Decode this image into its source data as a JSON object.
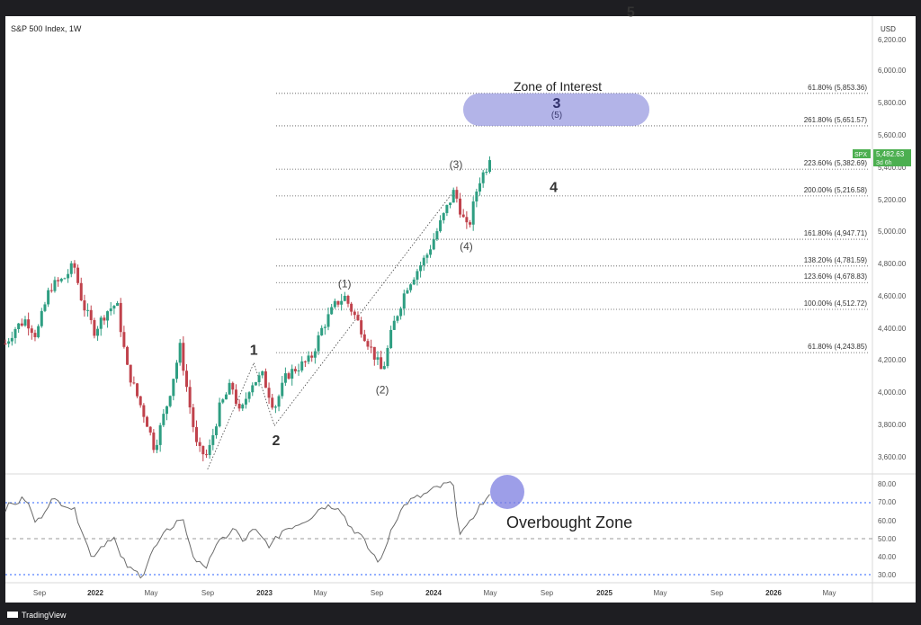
{
  "header": {
    "title": "S&P 500 Index, 1W",
    "currency": "USD"
  },
  "footer": {
    "brand": "TradingView"
  },
  "colors": {
    "up": "#2e9e82",
    "down": "#c0424c",
    "zone": "#9a9be0",
    "price_tag": "#4caf50",
    "rsi_line": "#6b6b6b",
    "bg": "#ffffff",
    "frame": "#1e1e22"
  },
  "price_axis": {
    "ticks": [
      "6,200.00",
      "6,000.00",
      "5,800.00",
      "5,600.00",
      "5,400.00",
      "5,200.00",
      "5,000.00",
      "4,800.00",
      "4,600.00",
      "4,400.00",
      "4,200.00",
      "4,000.00",
      "3,800.00",
      "3,600.00"
    ],
    "tag_symbol": "SPX",
    "tag_price": "5,482.63",
    "tag_time": "3d 6h"
  },
  "rsi_axis": {
    "ticks": [
      "80.00",
      "70.00",
      "60.00",
      "50.00",
      "40.00",
      "30.00"
    ]
  },
  "time_axis": {
    "ticks": [
      "Sep",
      "2022",
      "May",
      "Sep",
      "2023",
      "May",
      "Sep",
      "2024",
      "May",
      "Sep",
      "2025",
      "May",
      "Sep",
      "2026",
      "May"
    ]
  },
  "fib_levels": [
    {
      "label": "61.80% (5,853.36)",
      "price": 5853.36
    },
    {
      "label": "261.80% (5,651.57)",
      "price": 5651.57
    },
    {
      "label": "223.60% (5,382.69)",
      "price": 5382.69
    },
    {
      "label": "200.00% (5,216.58)",
      "price": 5216.58
    },
    {
      "label": "161.80% (4,947.71)",
      "price": 4947.71
    },
    {
      "label": "138.20% (4,781.59)",
      "price": 4781.59
    },
    {
      "label": "123.60% (4,678.83)",
      "price": 4678.83
    },
    {
      "label": "100.00% (4,512.72)",
      "price": 4512.72
    },
    {
      "label": "61.80% (4,243.85)",
      "price": 4243.85
    }
  ],
  "zone": {
    "title": "Zone of Interest",
    "wave": "3",
    "subwave": "(5)",
    "price_low": 5651.57,
    "price_high": 5853.36
  },
  "annotations": {
    "overbought": "Overbought Zone",
    "waves_major": [
      {
        "label": "1",
        "date": "2023.05",
        "price": 4230
      },
      {
        "label": "2",
        "date": "2023.18",
        "price": 3670
      },
      {
        "label": "4",
        "date": "2024.80",
        "price": 5240
      },
      {
        "label": "5",
        "date": "2025.25",
        "price": 6330
      }
    ],
    "waves_minor": [
      {
        "label": "(1)",
        "date": "2023.58",
        "price": 4650
      },
      {
        "label": "(2)",
        "date": "2023.80",
        "price": 3990
      },
      {
        "label": "(3)",
        "date": "2024.23",
        "price": 5390
      },
      {
        "label": "(4)",
        "date": "2024.29",
        "price": 4880
      }
    ]
  },
  "chart_data": {
    "type": "candlestick",
    "title": "S&P 500 Index, 1W",
    "price_range": [
      3450,
      6350
    ],
    "rsi_range": [
      27,
      85
    ],
    "x_range": [
      "2021.60",
      "2026.65"
    ],
    "price_keypoints": [
      [
        "2021.60",
        4300
      ],
      [
        "2021.66",
        4400
      ],
      [
        "2021.72",
        4450
      ],
      [
        "2021.78",
        4350
      ],
      [
        "2021.86",
        4650
      ],
      [
        "2021.94",
        4700
      ],
      [
        "2022.00",
        4790
      ],
      [
        "2022.05",
        4550
      ],
      [
        "2022.12",
        4380
      ],
      [
        "2022.19",
        4500
      ],
      [
        "2022.25",
        4550
      ],
      [
        "2022.31",
        4150
      ],
      [
        "2022.36",
        4000
      ],
      [
        "2022.43",
        3800
      ],
      [
        "2022.47",
        3650
      ],
      [
        "2022.55",
        3950
      ],
      [
        "2022.62",
        4280
      ],
      [
        "2022.67",
        3950
      ],
      [
        "2022.72",
        3640
      ],
      [
        "2022.78",
        3600
      ],
      [
        "2022.85",
        3900
      ],
      [
        "2022.92",
        4050
      ],
      [
        "2022.97",
        3850
      ],
      [
        "2023.03",
        4050
      ],
      [
        "2023.10",
        4100
      ],
      [
        "2023.17",
        3900
      ],
      [
        "2023.24",
        4100
      ],
      [
        "2023.30",
        4150
      ],
      [
        "2023.38",
        4200
      ],
      [
        "2023.45",
        4400
      ],
      [
        "2023.53",
        4550
      ],
      [
        "2023.58",
        4590
      ],
      [
        "2023.65",
        4450
      ],
      [
        "2023.72",
        4300
      ],
      [
        "2023.80",
        4120
      ],
      [
        "2023.86",
        4400
      ],
      [
        "2023.94",
        4650
      ],
      [
        "2024.00",
        4750
      ],
      [
        "2024.06",
        4850
      ],
      [
        "2024.14",
        5050
      ],
      [
        "2024.22",
        5250
      ],
      [
        "2024.27",
        5080
      ],
      [
        "2024.30",
        5000
      ],
      [
        "2024.36",
        5300
      ],
      [
        "2024.41",
        5400
      ],
      [
        "2024.43",
        5480
      ]
    ],
    "rsi_keypoints": [
      [
        "2021.60",
        67
      ],
      [
        "2021.66",
        70
      ],
      [
        "2021.72",
        72
      ],
      [
        "2021.78",
        58
      ],
      [
        "2021.86",
        71
      ],
      [
        "2021.94",
        70
      ],
      [
        "2022.00",
        66
      ],
      [
        "2022.05",
        55
      ],
      [
        "2022.10",
        40
      ],
      [
        "2022.16",
        46
      ],
      [
        "2022.23",
        52
      ],
      [
        "2022.27",
        40
      ],
      [
        "2022.33",
        33
      ],
      [
        "2022.40",
        30
      ],
      [
        "2022.45",
        42
      ],
      [
        "2022.55",
        55
      ],
      [
        "2022.63",
        62
      ],
      [
        "2022.70",
        40
      ],
      [
        "2022.76",
        33
      ],
      [
        "2022.80",
        42
      ],
      [
        "2022.87",
        50
      ],
      [
        "2022.94",
        56
      ],
      [
        "2022.98",
        48
      ],
      [
        "2023.05",
        55
      ],
      [
        "2023.10",
        50
      ],
      [
        "2023.15",
        46
      ],
      [
        "2023.22",
        55
      ],
      [
        "2023.30",
        58
      ],
      [
        "2023.38",
        62
      ],
      [
        "2023.45",
        68
      ],
      [
        "2023.55",
        68
      ],
      [
        "2023.60",
        58
      ],
      [
        "2023.67",
        52
      ],
      [
        "2023.73",
        43
      ],
      [
        "2023.79",
        37
      ],
      [
        "2023.86",
        58
      ],
      [
        "2023.94",
        70
      ],
      [
        "2024.04",
        74
      ],
      [
        "2024.12",
        78
      ],
      [
        "2024.21",
        81
      ],
      [
        "2024.25",
        54
      ],
      [
        "2024.30",
        56
      ],
      [
        "2024.35",
        66
      ],
      [
        "2024.40",
        71
      ],
      [
        "2024.43",
        73
      ]
    ]
  }
}
